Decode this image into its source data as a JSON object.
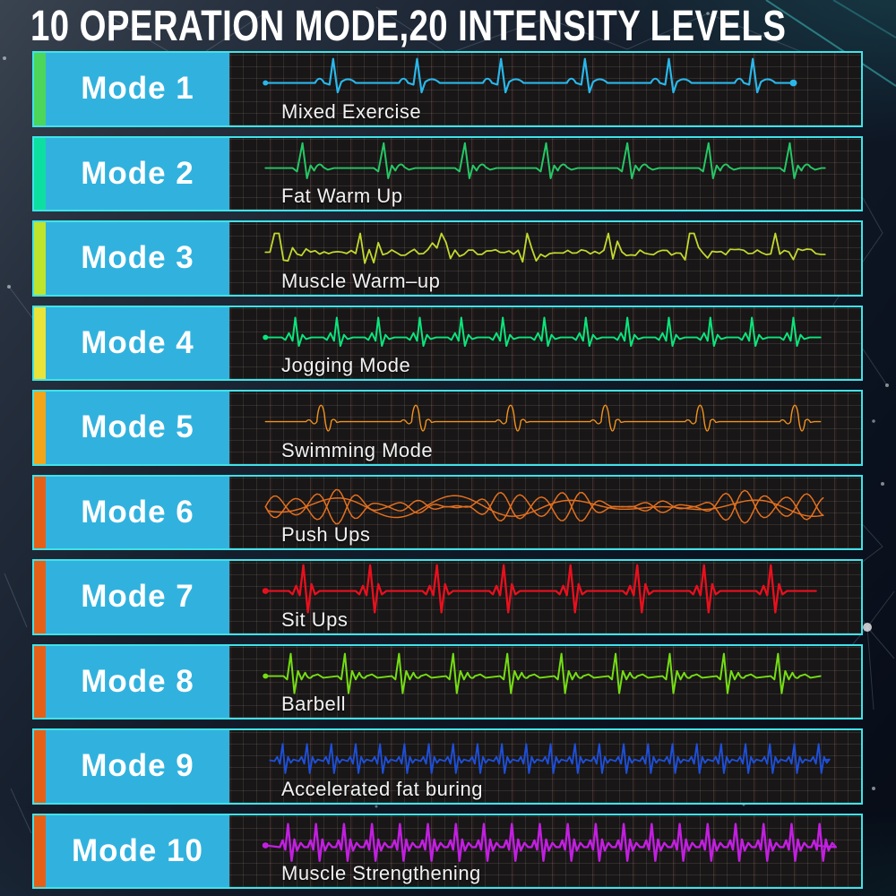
{
  "title": "10 OPERATION MODE,20 INTENSITY LEVELS",
  "theme": {
    "background": "#0e1622",
    "row_border_color": "#3fe3ea",
    "mode_box_color": "#31b2de",
    "panel_background": "#181616",
    "title_color": "#ffffff",
    "label_color": "#f2f2f2"
  },
  "modes": [
    {
      "label": "Mode 1",
      "name": "Mixed Exercise",
      "accent_color": "#4cd65a",
      "wave_color": "#29b7ea",
      "waveform": "ecg-classic"
    },
    {
      "label": "Mode 2",
      "name": "Fat Warm Up",
      "accent_color": "#0ddfa1",
      "wave_color": "#25c765",
      "waveform": "ecg-beat"
    },
    {
      "label": "Mode 3",
      "name": "Muscle Warm–up",
      "accent_color": "#bfe42c",
      "wave_color": "#c3d92e",
      "waveform": "ecg-noisy"
    },
    {
      "label": "Mode 4",
      "name": "Jogging Mode",
      "accent_color": "#e9e437",
      "wave_color": "#0be57c",
      "waveform": "ecg-frequent"
    },
    {
      "label": "Mode 5",
      "name": "Swimming Mode",
      "accent_color": "#f4a418",
      "wave_color": "#f0921e",
      "waveform": "burst"
    },
    {
      "label": "Mode 6",
      "name": "Push Ups",
      "accent_color": "#e65f17",
      "wave_color": "#e4701f",
      "waveform": "envelope"
    },
    {
      "label": "Mode 7",
      "name": "Sit Ups",
      "accent_color": "#e65f17",
      "wave_color": "#e8101e",
      "waveform": "spikes-strong"
    },
    {
      "label": "Mode 8",
      "name": "Barbell",
      "accent_color": "#e65f17",
      "wave_color": "#74dd13",
      "waveform": "spikes-strong2"
    },
    {
      "label": "Mode 9",
      "name": "Accelerated fat buring",
      "accent_color": "#e65f17",
      "wave_color": "#1e4fd8",
      "waveform": "spikes-dense"
    },
    {
      "label": "Mode 10",
      "name": "Muscle Strengthening",
      "accent_color": "#e65f17",
      "wave_color": "#c21fe0",
      "waveform": "spikes-verydense"
    }
  ]
}
